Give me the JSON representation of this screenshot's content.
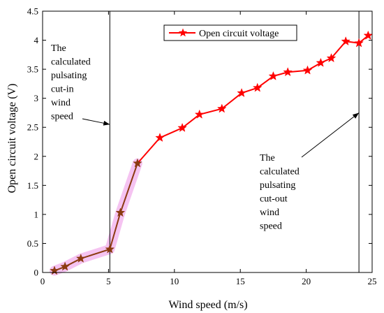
{
  "chart_data": {
    "type": "line",
    "xlabel": "Wind speed (m/s)",
    "ylabel": "Open circuit voltage (V)",
    "xlim": [
      0,
      25
    ],
    "ylim": [
      0,
      4.5
    ],
    "xticks": [
      "0",
      "5",
      "10",
      "15",
      "20",
      "25"
    ],
    "yticks": [
      "0",
      "0.5",
      "1",
      "1.5",
      "2",
      "2.5",
      "3",
      "3.5",
      "4",
      "4.5"
    ],
    "grid": false,
    "legend_position": "top-right",
    "series": [
      {
        "name": "Open circuit voltage",
        "color": "#ff0000",
        "marker": "star",
        "x": [
          0.9,
          1.7,
          2.9,
          5.1,
          5.9,
          7.2,
          8.9,
          10.6,
          11.9,
          13.6,
          15.1,
          16.3,
          17.5,
          18.6,
          20.1,
          21.1,
          21.9,
          23.0,
          24.0,
          24.7
        ],
        "y": [
          0.03,
          0.1,
          0.24,
          0.4,
          1.03,
          1.88,
          2.32,
          2.49,
          2.72,
          2.82,
          3.09,
          3.18,
          3.38,
          3.45,
          3.48,
          3.61,
          3.69,
          3.98,
          3.95,
          4.08
        ]
      }
    ],
    "highlight_segment": {
      "x_from": 0,
      "x_to": 7.2,
      "line_color": "#8b3a10",
      "band_color": "#f3b8ee"
    },
    "vlines": [
      5.1,
      24.0
    ],
    "annotations": [
      {
        "lines": [
          "The",
          "calculated",
          "pulsating",
          "cut-in",
          "wind",
          "speed"
        ],
        "arrow_to": [
          5.1,
          2.55
        ]
      },
      {
        "lines": [
          "The",
          "calculated",
          "pulsating",
          "cut-out",
          "wind",
          "speed"
        ],
        "arrow_to": [
          24.0,
          2.75
        ]
      }
    ]
  }
}
